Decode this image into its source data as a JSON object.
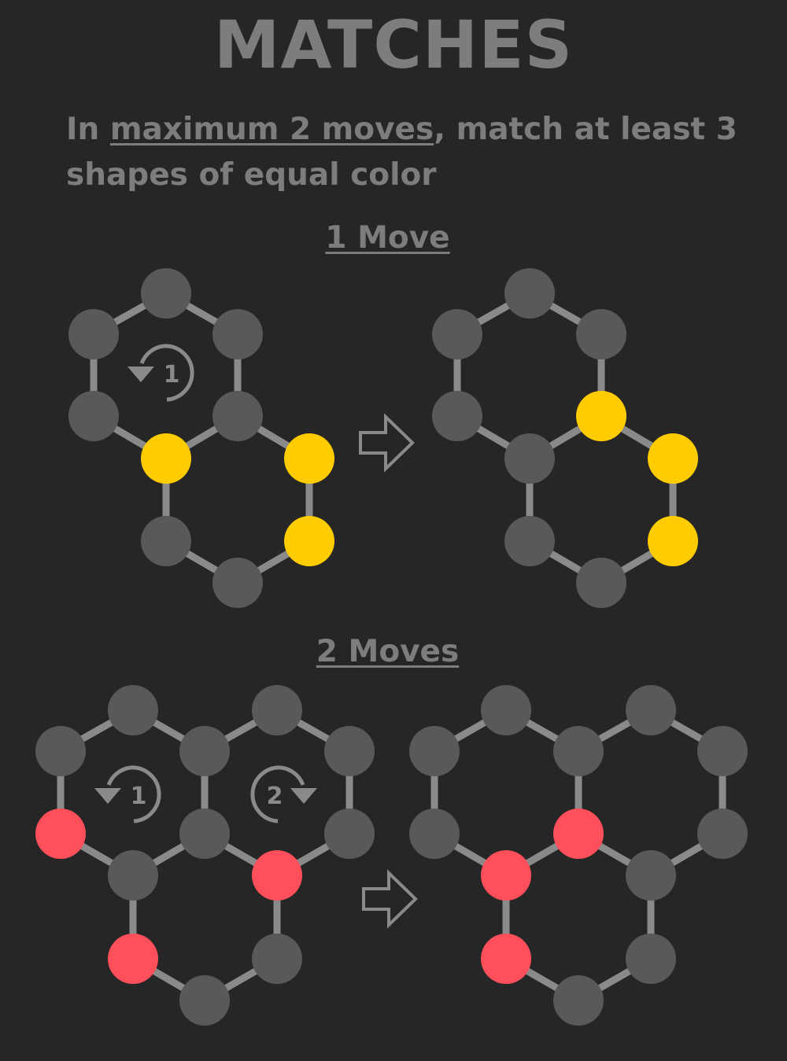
{
  "title": "MATCHES",
  "instruction": {
    "before": "In ",
    "emphasis": "maximum 2 moves",
    "after": ", match at least 3 shapes of equal color"
  },
  "colors": {
    "background": "#262626",
    "text": "#7d7d7d",
    "edge": "#8a8a8a",
    "node_gray": "#595959",
    "node_yellow": "#ffcc00",
    "node_red": "#ff4f5a"
  },
  "sections": [
    {
      "title": "1 Move",
      "rotations": [
        {
          "label": "1",
          "direction": "counterclockwise"
        }
      ],
      "before_colors": [
        "gray",
        "gray",
        "gray",
        "gray",
        "gray",
        "yellow",
        "yellow",
        "yellow",
        "gray",
        "gray"
      ],
      "after_colors": [
        "gray",
        "gray",
        "gray",
        "gray",
        "yellow",
        "gray",
        "yellow",
        "yellow",
        "gray",
        "gray"
      ],
      "arrow_icon": "right-arrow-outline-icon"
    },
    {
      "title": "2 Moves",
      "rotations": [
        {
          "label": "1",
          "direction": "counterclockwise"
        },
        {
          "label": "2",
          "direction": "clockwise"
        }
      ],
      "before_colors": [
        "gray",
        "gray",
        "gray",
        "gray",
        "gray",
        "gray",
        "gray",
        "red",
        "gray",
        "gray",
        "red",
        "gray",
        "red",
        "gray",
        "gray"
      ],
      "after_colors": [
        "gray",
        "gray",
        "gray",
        "gray",
        "gray",
        "gray",
        "gray",
        "gray",
        "red",
        "gray",
        "red",
        "gray",
        "red",
        "gray",
        "gray"
      ],
      "arrow_icon": "right-arrow-outline-icon"
    }
  ]
}
